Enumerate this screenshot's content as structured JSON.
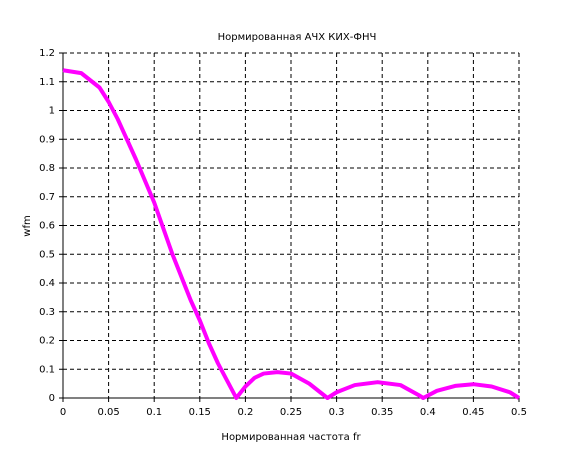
{
  "chart_data": {
    "type": "line",
    "title": "Нормированная АЧХ КИХ-ФНЧ",
    "x_label": "Нормированная частота fr",
    "y_label": "wfm",
    "x": [
      0,
      0.02,
      0.04,
      0.05,
      0.06,
      0.08,
      0.1,
      0.12,
      0.14,
      0.15,
      0.16,
      0.17,
      0.18,
      0.19,
      0.2,
      0.21,
      0.22,
      0.235,
      0.25,
      0.27,
      0.29,
      0.3,
      0.32,
      0.345,
      0.37,
      0.39,
      0.395,
      0.41,
      0.43,
      0.45,
      0.47,
      0.49,
      0.5
    ],
    "series": [
      {
        "name": "wfm",
        "color": "#ff00ff",
        "values": [
          1.14,
          1.13,
          1.08,
          1.03,
          0.97,
          0.83,
          0.68,
          0.5,
          0.34,
          0.27,
          0.19,
          0.12,
          0.06,
          0.0,
          0.04,
          0.07,
          0.085,
          0.09,
          0.085,
          0.05,
          0.0,
          0.02,
          0.045,
          0.055,
          0.045,
          0.01,
          0.0,
          0.025,
          0.042,
          0.048,
          0.04,
          0.02,
          0.0
        ]
      }
    ],
    "xlim": [
      0,
      0.5
    ],
    "ylim": [
      0,
      1.2
    ],
    "xticks": [
      0,
      0.05,
      0.1,
      0.15,
      0.2,
      0.25,
      0.3,
      0.35,
      0.4,
      0.45,
      0.5
    ],
    "yticks": [
      0,
      0.1,
      0.2,
      0.3,
      0.4,
      0.5,
      0.6,
      0.7,
      0.8,
      0.9,
      1,
      1.1,
      1.2
    ],
    "grid": true
  }
}
